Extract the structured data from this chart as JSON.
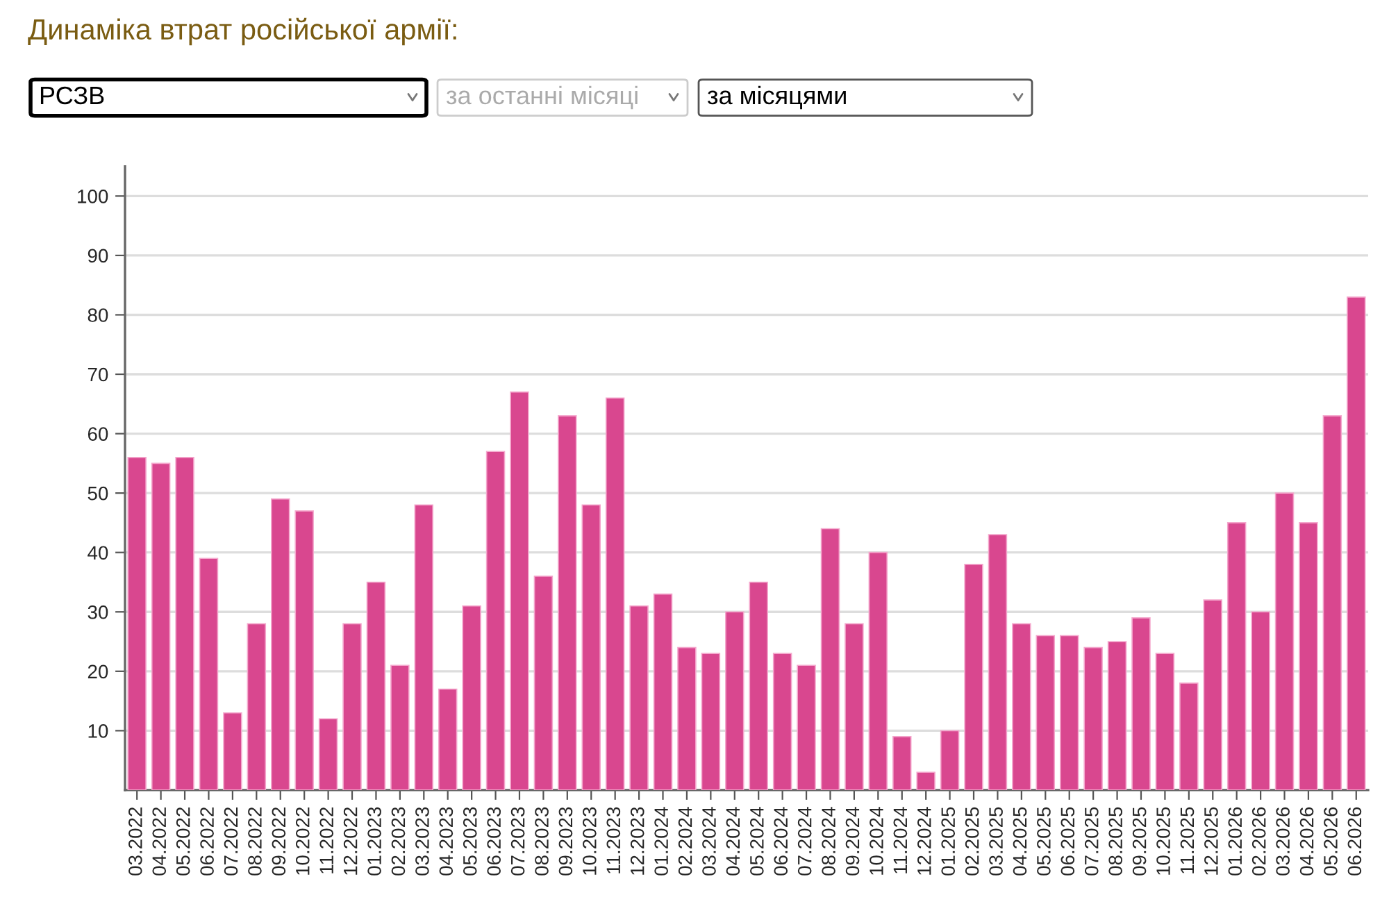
{
  "chart_data": {
    "type": "bar",
    "title": "Динаміка втрат російської армії:",
    "annotations": [
      "РСЗВ",
      "за останні місяці",
      "за місяцями"
    ],
    "categories": [
      "03.2022",
      "04.2022",
      "05.2022",
      "06.2022",
      "07.2022",
      "08.2022",
      "09.2022",
      "10.2022",
      "11.2022",
      "12.2022",
      "01.2023",
      "02.2023",
      "03.2023",
      "04.2023",
      "05.2023",
      "06.2023",
      "07.2023",
      "08.2023",
      "09.2023",
      "10.2023",
      "11.2023",
      "12.2023",
      "01.2024",
      "02.2024",
      "03.2024",
      "04.2024",
      "05.2024",
      "06.2024",
      "07.2024",
      "08.2024",
      "09.2024",
      "10.2024",
      "11.2024",
      "12.2024",
      "01.2025",
      "02.2025",
      "03.2025",
      "04.2025",
      "05.2025",
      "06.2025",
      "07.2025",
      "08.2025",
      "09.2025",
      "10.2025",
      "11.2025",
      "12.2025",
      "01.2026",
      "02.2026",
      "03.2026",
      "04.2026",
      "05.2026",
      "06.2026"
    ],
    "values": [
      56,
      55,
      56,
      39,
      13,
      28,
      49,
      47,
      12,
      28,
      35,
      21,
      48,
      17,
      31,
      57,
      67,
      36,
      63,
      48,
      66,
      31,
      33,
      24,
      23,
      30,
      35,
      23,
      21,
      44,
      28,
      40,
      9,
      3,
      10,
      38,
      43,
      28,
      26,
      26,
      24,
      25,
      29,
      23,
      18,
      32,
      45,
      30,
      50,
      45,
      63,
      83
    ],
    "color": "#d9478f",
    "ylim": [
      0,
      105
    ],
    "yticks": [
      10,
      20,
      30,
      40,
      50,
      60,
      70,
      80,
      90,
      100
    ],
    "grid": "y"
  }
}
